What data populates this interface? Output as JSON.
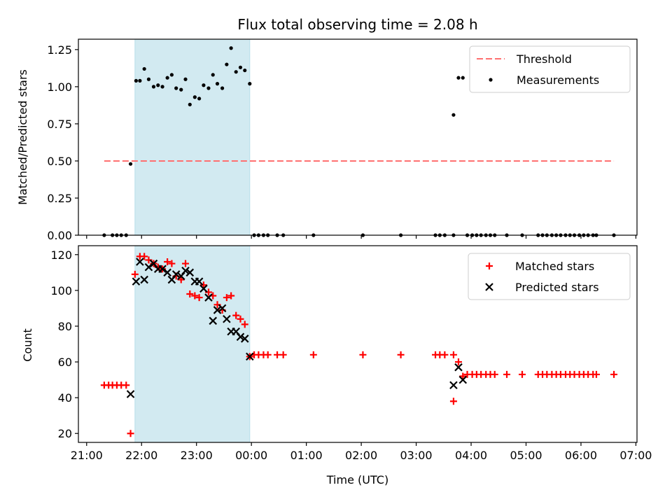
{
  "title": "Flux total observing time = 2.08 h",
  "xlabel": "Time (UTC)",
  "x_ticks": [
    {
      "t": 21.0,
      "label": "21:00"
    },
    {
      "t": 22.0,
      "label": "22:00"
    },
    {
      "t": 23.0,
      "label": "23:00"
    },
    {
      "t": 24.0,
      "label": "00:00"
    },
    {
      "t": 25.0,
      "label": "01:00"
    },
    {
      "t": 26.0,
      "label": "02:00"
    },
    {
      "t": 27.0,
      "label": "03:00"
    },
    {
      "t": 28.0,
      "label": "04:00"
    },
    {
      "t": 29.0,
      "label": "05:00"
    },
    {
      "t": 30.0,
      "label": "06:00"
    },
    {
      "t": 31.0,
      "label": "07:00"
    }
  ],
  "chart_data": [
    {
      "type": "scatter",
      "ylabel": "Matched/Predicted stars",
      "ylim": [
        0,
        1.32
      ],
      "y_ticks": [
        "0.00",
        "0.25",
        "0.50",
        "0.75",
        "1.00",
        "1.25"
      ],
      "highlight_span": {
        "start": 21.88,
        "end": 23.97,
        "color": "#add8e6"
      },
      "legend_position": "upper right",
      "threshold": {
        "name": "Threshold",
        "y": 0.5,
        "x_start": 21.32,
        "x_end": 30.6,
        "color": "#ff7070"
      },
      "series": [
        {
          "name": "Measurements",
          "color": "#000000",
          "marker": "dot",
          "points": [
            [
              21.32,
              0
            ],
            [
              21.47,
              0
            ],
            [
              21.55,
              0
            ],
            [
              21.63,
              0
            ],
            [
              21.72,
              0
            ],
            [
              21.8,
              0.48
            ],
            [
              21.9,
              1.04
            ],
            [
              21.97,
              1.04
            ],
            [
              22.05,
              1.12
            ],
            [
              22.13,
              1.05
            ],
            [
              22.22,
              1.0
            ],
            [
              22.3,
              1.01
            ],
            [
              22.38,
              1.0
            ],
            [
              22.47,
              1.06
            ],
            [
              22.55,
              1.08
            ],
            [
              22.63,
              0.99
            ],
            [
              22.72,
              0.98
            ],
            [
              22.8,
              1.05
            ],
            [
              22.88,
              0.88
            ],
            [
              22.97,
              0.93
            ],
            [
              23.05,
              0.92
            ],
            [
              23.13,
              1.01
            ],
            [
              23.22,
              0.99
            ],
            [
              23.3,
              1.08
            ],
            [
              23.38,
              1.02
            ],
            [
              23.47,
              0.99
            ],
            [
              23.55,
              1.15
            ],
            [
              23.63,
              1.26
            ],
            [
              23.72,
              1.1
            ],
            [
              23.8,
              1.13
            ],
            [
              23.88,
              1.11
            ],
            [
              23.97,
              1.02
            ],
            [
              24.05,
              0
            ],
            [
              24.13,
              0
            ],
            [
              24.22,
              0
            ],
            [
              24.3,
              0
            ],
            [
              24.47,
              0
            ],
            [
              24.58,
              0
            ],
            [
              25.13,
              0
            ],
            [
              26.03,
              0
            ],
            [
              26.72,
              0
            ],
            [
              27.35,
              0
            ],
            [
              27.43,
              0
            ],
            [
              27.52,
              0
            ],
            [
              27.68,
              0.81
            ],
            [
              27.77,
              1.06
            ],
            [
              27.85,
              1.06
            ],
            [
              27.68,
              0
            ],
            [
              27.93,
              0
            ],
            [
              28.02,
              0
            ],
            [
              28.1,
              0
            ],
            [
              28.18,
              0
            ],
            [
              28.27,
              0
            ],
            [
              28.35,
              0
            ],
            [
              28.43,
              0
            ],
            [
              28.65,
              0
            ],
            [
              28.93,
              0
            ],
            [
              29.22,
              0
            ],
            [
              29.3,
              0
            ],
            [
              29.38,
              0
            ],
            [
              29.47,
              0
            ],
            [
              29.55,
              0
            ],
            [
              29.63,
              0
            ],
            [
              29.72,
              0
            ],
            [
              29.8,
              0
            ],
            [
              29.88,
              0
            ],
            [
              29.97,
              0
            ],
            [
              30.05,
              0
            ],
            [
              30.13,
              0
            ],
            [
              30.22,
              0
            ],
            [
              30.28,
              0
            ],
            [
              30.6,
              0
            ]
          ]
        }
      ]
    },
    {
      "type": "scatter",
      "ylabel": "Count",
      "ylim": [
        15,
        125
      ],
      "y_ticks": [
        "20",
        "40",
        "60",
        "80",
        "100",
        "120"
      ],
      "highlight_span": {
        "start": 21.88,
        "end": 23.97,
        "color": "#add8e6"
      },
      "legend_position": "upper right",
      "series": [
        {
          "name": "Matched stars",
          "color": "#ff0000",
          "marker": "plus",
          "points": [
            [
              21.32,
              47
            ],
            [
              21.4,
              47
            ],
            [
              21.47,
              47
            ],
            [
              21.55,
              47
            ],
            [
              21.63,
              47
            ],
            [
              21.72,
              47
            ],
            [
              21.8,
              20
            ],
            [
              21.88,
              109
            ],
            [
              21.97,
              119
            ],
            [
              22.05,
              119
            ],
            [
              22.13,
              117
            ],
            [
              22.22,
              115
            ],
            [
              22.3,
              113
            ],
            [
              22.38,
              112
            ],
            [
              22.47,
              116
            ],
            [
              22.55,
              115
            ],
            [
              22.63,
              108
            ],
            [
              22.72,
              106
            ],
            [
              22.8,
              115
            ],
            [
              22.88,
              98
            ],
            [
              22.97,
              97
            ],
            [
              23.05,
              96
            ],
            [
              23.13,
              103
            ],
            [
              23.22,
              99
            ],
            [
              23.3,
              97
            ],
            [
              23.38,
              92
            ],
            [
              23.47,
              89
            ],
            [
              23.55,
              96
            ],
            [
              23.63,
              97
            ],
            [
              23.72,
              86
            ],
            [
              23.8,
              84
            ],
            [
              23.88,
              81
            ],
            [
              23.97,
              63
            ],
            [
              24.05,
              64
            ],
            [
              24.13,
              64
            ],
            [
              24.22,
              64
            ],
            [
              24.3,
              64
            ],
            [
              24.47,
              64
            ],
            [
              24.58,
              64
            ],
            [
              25.13,
              64
            ],
            [
              26.03,
              64
            ],
            [
              26.72,
              64
            ],
            [
              27.35,
              64
            ],
            [
              27.43,
              64
            ],
            [
              27.52,
              64
            ],
            [
              27.68,
              64
            ],
            [
              27.68,
              38
            ],
            [
              27.77,
              60
            ],
            [
              27.85,
              52
            ],
            [
              27.93,
              53
            ],
            [
              28.02,
              53
            ],
            [
              28.1,
              53
            ],
            [
              28.18,
              53
            ],
            [
              28.27,
              53
            ],
            [
              28.35,
              53
            ],
            [
              28.43,
              53
            ],
            [
              28.65,
              53
            ],
            [
              28.93,
              53
            ],
            [
              29.22,
              53
            ],
            [
              29.3,
              53
            ],
            [
              29.38,
              53
            ],
            [
              29.47,
              53
            ],
            [
              29.55,
              53
            ],
            [
              29.63,
              53
            ],
            [
              29.72,
              53
            ],
            [
              29.8,
              53
            ],
            [
              29.88,
              53
            ],
            [
              29.97,
              53
            ],
            [
              30.05,
              53
            ],
            [
              30.13,
              53
            ],
            [
              30.22,
              53
            ],
            [
              30.28,
              53
            ],
            [
              30.6,
              53
            ]
          ]
        },
        {
          "name": "Predicted stars",
          "color": "#000000",
          "marker": "x",
          "points": [
            [
              21.8,
              42
            ],
            [
              21.9,
              105
            ],
            [
              21.97,
              116
            ],
            [
              22.05,
              106
            ],
            [
              22.13,
              113
            ],
            [
              22.22,
              115
            ],
            [
              22.3,
              112
            ],
            [
              22.38,
              112
            ],
            [
              22.47,
              110
            ],
            [
              22.55,
              106
            ],
            [
              22.63,
              109
            ],
            [
              22.72,
              108
            ],
            [
              22.8,
              111
            ],
            [
              22.88,
              110
            ],
            [
              22.97,
              105
            ],
            [
              23.05,
              105
            ],
            [
              23.13,
              101
            ],
            [
              23.22,
              96
            ],
            [
              23.3,
              83
            ],
            [
              23.38,
              89
            ],
            [
              23.47,
              90
            ],
            [
              23.55,
              84
            ],
            [
              23.63,
              77
            ],
            [
              23.72,
              77
            ],
            [
              23.8,
              74
            ],
            [
              23.88,
              73
            ],
            [
              23.97,
              63
            ],
            [
              27.68,
              47
            ],
            [
              27.77,
              57
            ],
            [
              27.85,
              50
            ]
          ]
        }
      ]
    }
  ]
}
